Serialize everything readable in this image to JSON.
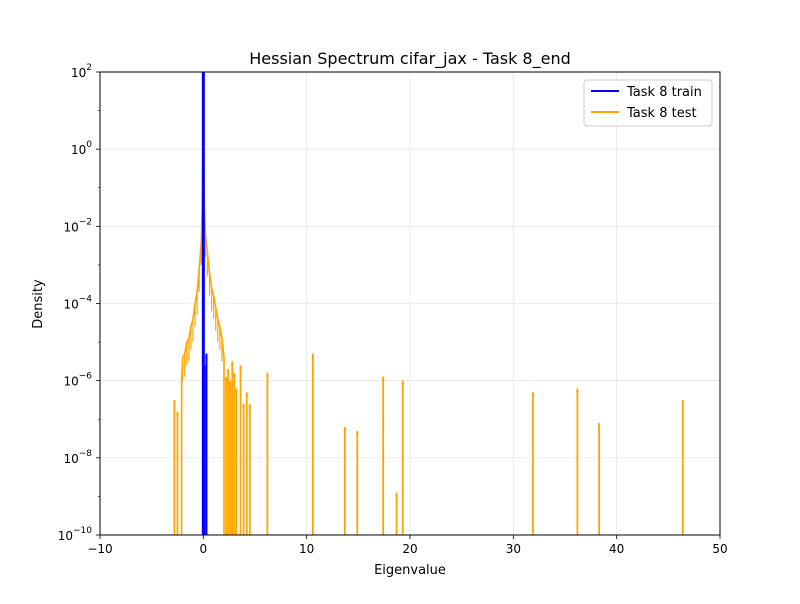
{
  "chart_data": {
    "type": "line",
    "title": "Hessian Spectrum cifar_jax - Task 8_end",
    "xlabel": "Eigenvalue",
    "ylabel": "Density",
    "xlim": [
      -10,
      50
    ],
    "ylim_exponents": [
      -10,
      2
    ],
    "yscale": "log",
    "grid": true,
    "legend_position": "upper right",
    "x_ticks": [
      -10,
      0,
      10,
      20,
      30,
      40,
      50
    ],
    "y_ticks": [
      {
        "base": "10",
        "exp": "−10",
        "value": -10
      },
      {
        "base": "10",
        "exp": "−8",
        "value": -8
      },
      {
        "base": "10",
        "exp": "−6",
        "value": -6
      },
      {
        "base": "10",
        "exp": "−4",
        "value": -4
      },
      {
        "base": "10",
        "exp": "−2",
        "value": -2
      },
      {
        "base": "10",
        "exp": "0",
        "value": 0
      },
      {
        "base": "10",
        "exp": "2",
        "value": 2
      }
    ],
    "series": [
      {
        "name": "Task 8 train",
        "color": "#0000ff",
        "spikes": [
          {
            "x": -0.05,
            "log10y": 2.0
          },
          {
            "x": 0.0,
            "log10y": 2.0
          },
          {
            "x": 0.05,
            "log10y": 2.0
          },
          {
            "x": 0.02,
            "log10y": -1.4
          },
          {
            "x": 0.1,
            "log10y": -5.6
          },
          {
            "x": 0.3,
            "log10y": -5.3
          }
        ]
      },
      {
        "name": "Task 8 test",
        "color": "#ffa500",
        "envelope": [
          [
            -2.1,
            -6.0
          ],
          [
            -2.0,
            -5.4
          ],
          [
            -1.8,
            -5.3
          ],
          [
            -1.6,
            -5.0
          ],
          [
            -1.4,
            -4.9
          ],
          [
            -1.2,
            -4.6
          ],
          [
            -1.0,
            -4.4
          ],
          [
            -0.8,
            -4.0
          ],
          [
            -0.6,
            -3.7
          ],
          [
            -0.4,
            -3.1
          ],
          [
            -0.2,
            -2.4
          ],
          [
            -0.1,
            -1.5
          ],
          [
            0.0,
            1.2
          ],
          [
            0.05,
            -0.3
          ],
          [
            0.1,
            -1.5
          ],
          [
            0.2,
            -2.2
          ],
          [
            0.4,
            -2.7
          ],
          [
            0.6,
            -3.2
          ],
          [
            0.8,
            -3.6
          ],
          [
            1.0,
            -3.8
          ],
          [
            1.2,
            -4.1
          ],
          [
            1.4,
            -4.4
          ],
          [
            1.6,
            -4.6
          ],
          [
            1.8,
            -4.9
          ],
          [
            2.0,
            -5.4
          ]
        ],
        "spikes": [
          {
            "x": -2.8,
            "log10y": -6.5
          },
          {
            "x": -2.5,
            "log10y": -6.8
          },
          {
            "x": 2.2,
            "log10y": -5.9
          },
          {
            "x": 2.4,
            "log10y": -5.7
          },
          {
            "x": 2.6,
            "log10y": -6.0
          },
          {
            "x": 2.8,
            "log10y": -5.5
          },
          {
            "x": 3.0,
            "log10y": -5.8
          },
          {
            "x": 3.2,
            "log10y": -6.2
          },
          {
            "x": 3.6,
            "log10y": -5.6
          },
          {
            "x": 3.9,
            "log10y": -6.6
          },
          {
            "x": 4.2,
            "log10y": -6.3
          },
          {
            "x": 4.5,
            "log10y": -6.6
          },
          {
            "x": 6.2,
            "log10y": -5.8
          },
          {
            "x": 10.6,
            "log10y": -5.3
          },
          {
            "x": 13.7,
            "log10y": -7.2
          },
          {
            "x": 14.9,
            "log10y": -7.3
          },
          {
            "x": 17.4,
            "log10y": -5.9
          },
          {
            "x": 18.7,
            "log10y": -8.9
          },
          {
            "x": 19.3,
            "log10y": -6.0
          },
          {
            "x": 31.9,
            "log10y": -6.3
          },
          {
            "x": 36.2,
            "log10y": -6.2
          },
          {
            "x": 38.3,
            "log10y": -7.1
          },
          {
            "x": 46.4,
            "log10y": -6.5
          }
        ]
      }
    ]
  }
}
